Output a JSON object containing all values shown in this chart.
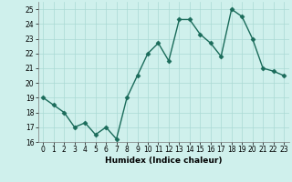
{
  "x": [
    0,
    1,
    2,
    3,
    4,
    5,
    6,
    7,
    8,
    9,
    10,
    11,
    12,
    13,
    14,
    15,
    16,
    17,
    18,
    19,
    20,
    21,
    22,
    23
  ],
  "y": [
    19.0,
    18.5,
    18.0,
    17.0,
    17.3,
    16.5,
    17.0,
    16.2,
    19.0,
    20.5,
    22.0,
    22.7,
    21.5,
    24.3,
    24.3,
    23.3,
    22.7,
    21.8,
    25.0,
    24.5,
    23.0,
    21.0,
    20.8,
    20.5
  ],
  "line_color": "#1a6b5a",
  "marker": "D",
  "markersize": 2.5,
  "linewidth": 1.0,
  "bg_color": "#cff0ec",
  "grid_color": "#aadad4",
  "xlabel": "Humidex (Indice chaleur)",
  "xlim": [
    -0.5,
    23.5
  ],
  "ylim": [
    16,
    25.5
  ],
  "yticks": [
    16,
    17,
    18,
    19,
    20,
    21,
    22,
    23,
    24,
    25
  ],
  "xticks": [
    0,
    1,
    2,
    3,
    4,
    5,
    6,
    7,
    8,
    9,
    10,
    11,
    12,
    13,
    14,
    15,
    16,
    17,
    18,
    19,
    20,
    21,
    22,
    23
  ],
  "xlabel_fontsize": 6.5,
  "tick_fontsize": 5.5
}
